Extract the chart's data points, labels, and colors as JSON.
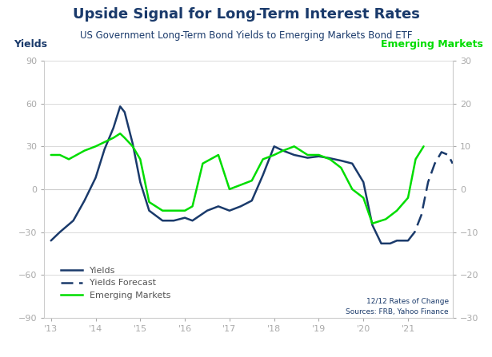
{
  "title": "Upside Signal for Long-Term Interest Rates",
  "subtitle": "US Government Long-Term Bond Yields to Emerging Markets Bond ETF",
  "title_fontsize": 13,
  "subtitle_fontsize": 8.5,
  "left_axis_label": "Yields",
  "right_axis_label": "Emerging Markets",
  "left_ylim": [
    -90,
    90
  ],
  "right_ylim": [
    -30,
    30
  ],
  "left_yticks": [
    -90,
    -60,
    -30,
    0,
    30,
    60,
    90
  ],
  "right_yticks": [
    -30,
    -20,
    -10,
    0,
    10,
    20,
    30
  ],
  "xlabel_ticks": [
    "'13",
    "'14",
    "'15",
    "'16",
    "'17",
    "'18",
    "'19",
    "'20",
    "'21"
  ],
  "xtick_positions": [
    2013,
    2014,
    2015,
    2016,
    2017,
    2018,
    2019,
    2020,
    2021
  ],
  "xlim": [
    2012.85,
    2022.0
  ],
  "annotation": "12/12 Rates of Change\nSources: FRB, Yahoo Finance",
  "yields_color": "#1a3a6b",
  "emerging_color": "#00dd00",
  "title_color": "#1a3a6b",
  "subtitle_color": "#1a3a6b",
  "axis_label_color": "#1a3a6b",
  "annotation_color": "#1a3a6b",
  "background_color": "#ffffff",
  "tick_color": "#aaaaaa",
  "spine_color": "#cccccc",
  "zero_line_color": "#cccccc",
  "yields_x": [
    2013.0,
    2013.2,
    2013.5,
    2013.75,
    2014.0,
    2014.2,
    2014.4,
    2014.55,
    2014.65,
    2014.83,
    2015.0,
    2015.2,
    2015.5,
    2015.75,
    2016.0,
    2016.17,
    2016.5,
    2016.75,
    2017.0,
    2017.25,
    2017.5,
    2017.75,
    2018.0,
    2018.2,
    2018.45,
    2018.6,
    2018.75,
    2019.0,
    2019.2,
    2019.5,
    2019.75,
    2020.0,
    2020.2,
    2020.4,
    2020.6,
    2020.75,
    2021.0
  ],
  "yields_y": [
    -36,
    -30,
    -22,
    -8,
    8,
    28,
    43,
    58,
    54,
    32,
    5,
    -15,
    -22,
    -22,
    -20,
    -22,
    -15,
    -12,
    -15,
    -12,
    -8,
    10,
    30,
    27,
    24,
    23,
    22,
    23,
    22,
    20,
    18,
    5,
    -25,
    -38,
    -38,
    -36,
    -36
  ],
  "yields_forecast_x": [
    2021.0,
    2021.15,
    2021.3,
    2021.45,
    2021.6,
    2021.75,
    2021.9,
    2022.0
  ],
  "yields_forecast_y": [
    -36,
    -30,
    -18,
    5,
    18,
    26,
    24,
    18
  ],
  "emerging_x": [
    2013.0,
    2013.2,
    2013.4,
    2013.75,
    2014.0,
    2014.2,
    2014.4,
    2014.55,
    2014.65,
    2014.83,
    2015.0,
    2015.2,
    2015.5,
    2015.75,
    2016.0,
    2016.17,
    2016.4,
    2016.75,
    2017.0,
    2017.25,
    2017.5,
    2017.75,
    2018.0,
    2018.2,
    2018.45,
    2018.6,
    2018.75,
    2019.0,
    2019.25,
    2019.5,
    2019.75,
    2020.0,
    2020.2,
    2020.5,
    2020.75,
    2021.0,
    2021.17,
    2021.35
  ],
  "emerging_y": [
    8,
    8,
    7,
    9,
    10,
    11,
    12,
    13,
    12,
    10,
    7,
    -3,
    -5,
    -5,
    -5,
    -4,
    6,
    8,
    0,
    1,
    2,
    7,
    8,
    9,
    10,
    9,
    8,
    8,
    7,
    5,
    0,
    -2,
    -8,
    -7,
    -5,
    -2,
    7,
    10
  ]
}
